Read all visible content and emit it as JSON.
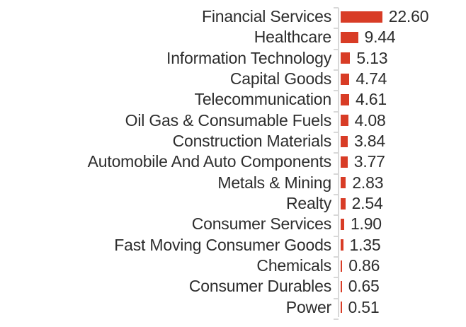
{
  "chart_data": {
    "type": "bar",
    "orientation": "horizontal",
    "title": "",
    "xlabel": "",
    "ylabel": "",
    "legend": false,
    "grid": false,
    "xlim": [
      0,
      25
    ],
    "categories": [
      "Financial Services",
      "Healthcare",
      "Information Technology",
      "Capital Goods",
      "Telecommunication",
      "Oil Gas & Consumable Fuels",
      "Construction Materials",
      "Automobile And Auto Components",
      "Metals & Mining",
      "Realty",
      "Consumer Services",
      "Fast Moving Consumer Goods",
      "Chemicals",
      "Consumer Durables",
      "Power"
    ],
    "values": [
      22.6,
      9.44,
      5.13,
      4.74,
      4.61,
      4.08,
      3.84,
      3.77,
      2.83,
      2.54,
      1.9,
      1.35,
      0.86,
      0.65,
      0.51
    ],
    "value_labels": [
      "22.60",
      "9.44",
      "5.13",
      "4.74",
      "4.61",
      "4.08",
      "3.84",
      "3.77",
      "2.83",
      "2.54",
      "1.90",
      "1.35",
      "0.86",
      "0.65",
      "0.51"
    ],
    "bar_color": "#d83c26",
    "axis_color": "#d8d8d8",
    "text_color": "#2d2d2d"
  }
}
